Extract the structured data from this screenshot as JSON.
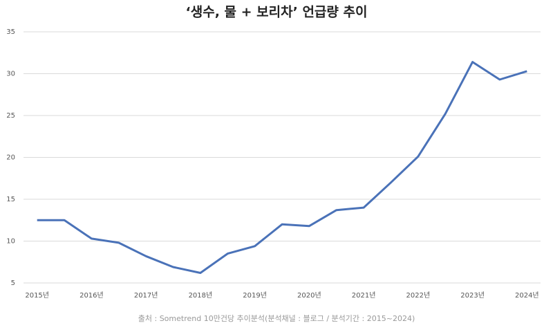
{
  "chart_data": {
    "type": "line",
    "title": "‘생수, 물 + 보리차’ 언급량 추이",
    "source": "출처 : Sometrend 10만건당 추이분석(분석채널 : 블로그 / 분석기간 : 2015~2024)",
    "categories": [
      "2015년",
      null,
      "2016년",
      null,
      "2017년",
      null,
      "2018년",
      null,
      "2019년",
      null,
      "2020년",
      null,
      "2021년",
      null,
      "2022년",
      null,
      "2023년",
      null,
      "2024년"
    ],
    "series": [
      {
        "name": "언급량",
        "color": "#4a72b8",
        "values": [
          12.5,
          12.5,
          10.3,
          9.8,
          8.2,
          6.9,
          6.2,
          8.5,
          9.4,
          12.0,
          11.8,
          13.7,
          14.0,
          17.0,
          20.1,
          25.2,
          31.4,
          29.3,
          30.3
        ]
      }
    ],
    "ylim": [
      5,
      35
    ],
    "yticks": [
      5,
      10,
      15,
      20,
      25,
      30,
      35
    ],
    "grid": true
  }
}
